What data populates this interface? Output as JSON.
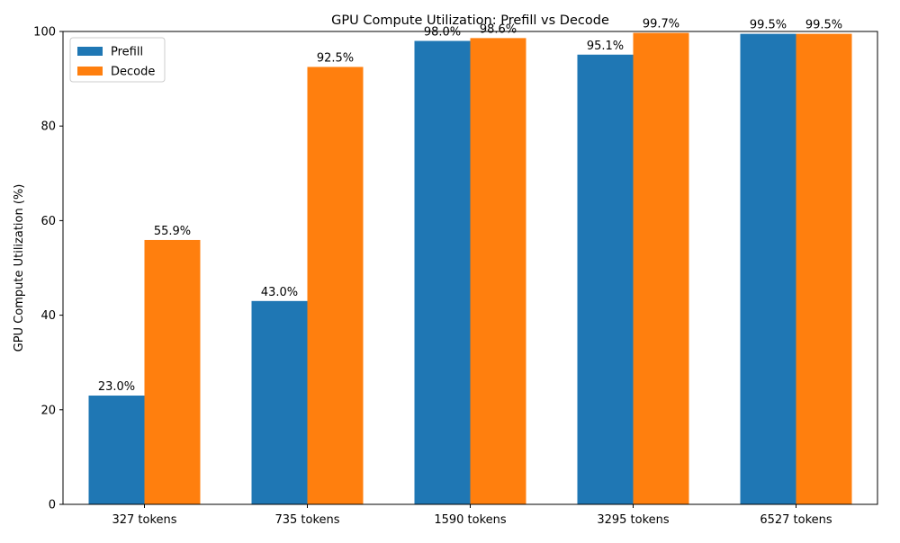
{
  "chart_data": {
    "type": "bar",
    "title": "GPU Compute Utilization: Prefill vs Decode",
    "xlabel": "",
    "ylabel": "GPU Compute Utilization (%)",
    "ylim": [
      0,
      100
    ],
    "yticks": [
      0,
      20,
      40,
      60,
      80,
      100
    ],
    "categories": [
      "327 tokens",
      "735 tokens",
      "1590 tokens",
      "3295 tokens",
      "6527 tokens"
    ],
    "series": [
      {
        "name": "Prefill",
        "color": "#1f77b4",
        "values": [
          23.0,
          43.0,
          98.0,
          95.1,
          99.5
        ],
        "labels": [
          "23.0%",
          "43.0%",
          "98.0%",
          "95.1%",
          "99.5%"
        ]
      },
      {
        "name": "Decode",
        "color": "#ff7f0e",
        "values": [
          55.9,
          92.5,
          98.6,
          99.7,
          99.5
        ],
        "labels": [
          "55.9%",
          "92.5%",
          "98.6%",
          "99.7%",
          "99.5%"
        ]
      }
    ],
    "legend_position": "top-left",
    "grid": false
  }
}
